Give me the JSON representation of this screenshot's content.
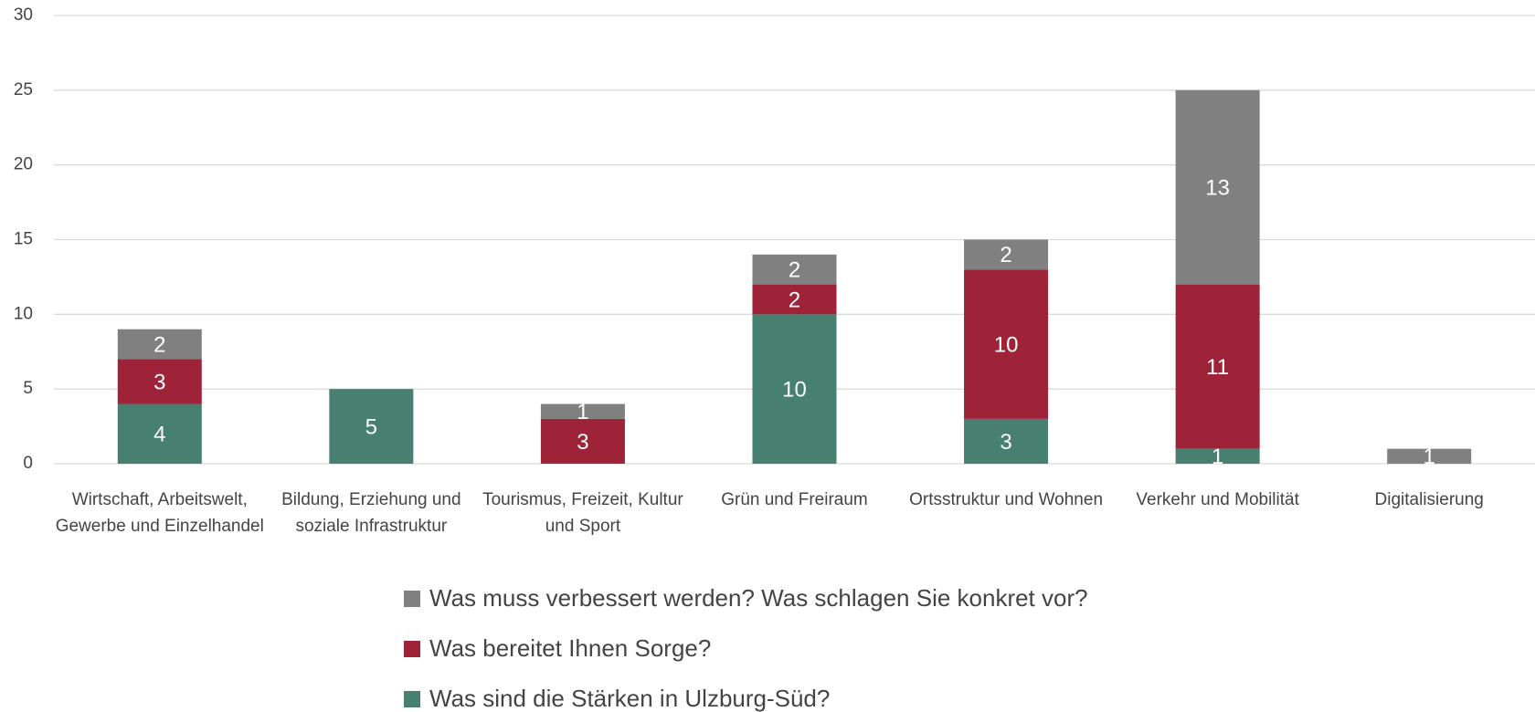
{
  "chart_data": {
    "type": "stacked_bar",
    "categories": [
      "Wirtschaft, Arbeitswelt, Gewerbe und Einzelhandel",
      "Bildung,  Erziehung und soziale Infrastruktur",
      "Tourismus, Freizeit, Kultur und Sport",
      "Grün und Freiraum",
      "Ortsstruktur und Wohnen",
      "Verkehr und Mobilität",
      "Digitalisierung"
    ],
    "series": [
      {
        "name": "Was sind die Stärken in Ulzburg-Süd?",
        "color": "#477f70",
        "values": [
          4,
          5,
          null,
          10,
          3,
          1,
          null
        ]
      },
      {
        "name": "Was bereitet Ihnen Sorge?",
        "color": "#9e2339",
        "values": [
          3,
          null,
          3,
          2,
          10,
          11,
          null
        ]
      },
      {
        "name": "Was muss verbessert werden? Was schlagen Sie konkret vor?",
        "color": "#808080",
        "values": [
          2,
          null,
          1,
          2,
          2,
          13,
          1
        ]
      }
    ],
    "ylim": [
      0,
      30
    ],
    "yticks": [
      0,
      5,
      10,
      15,
      20,
      25,
      30
    ],
    "grid": true
  }
}
